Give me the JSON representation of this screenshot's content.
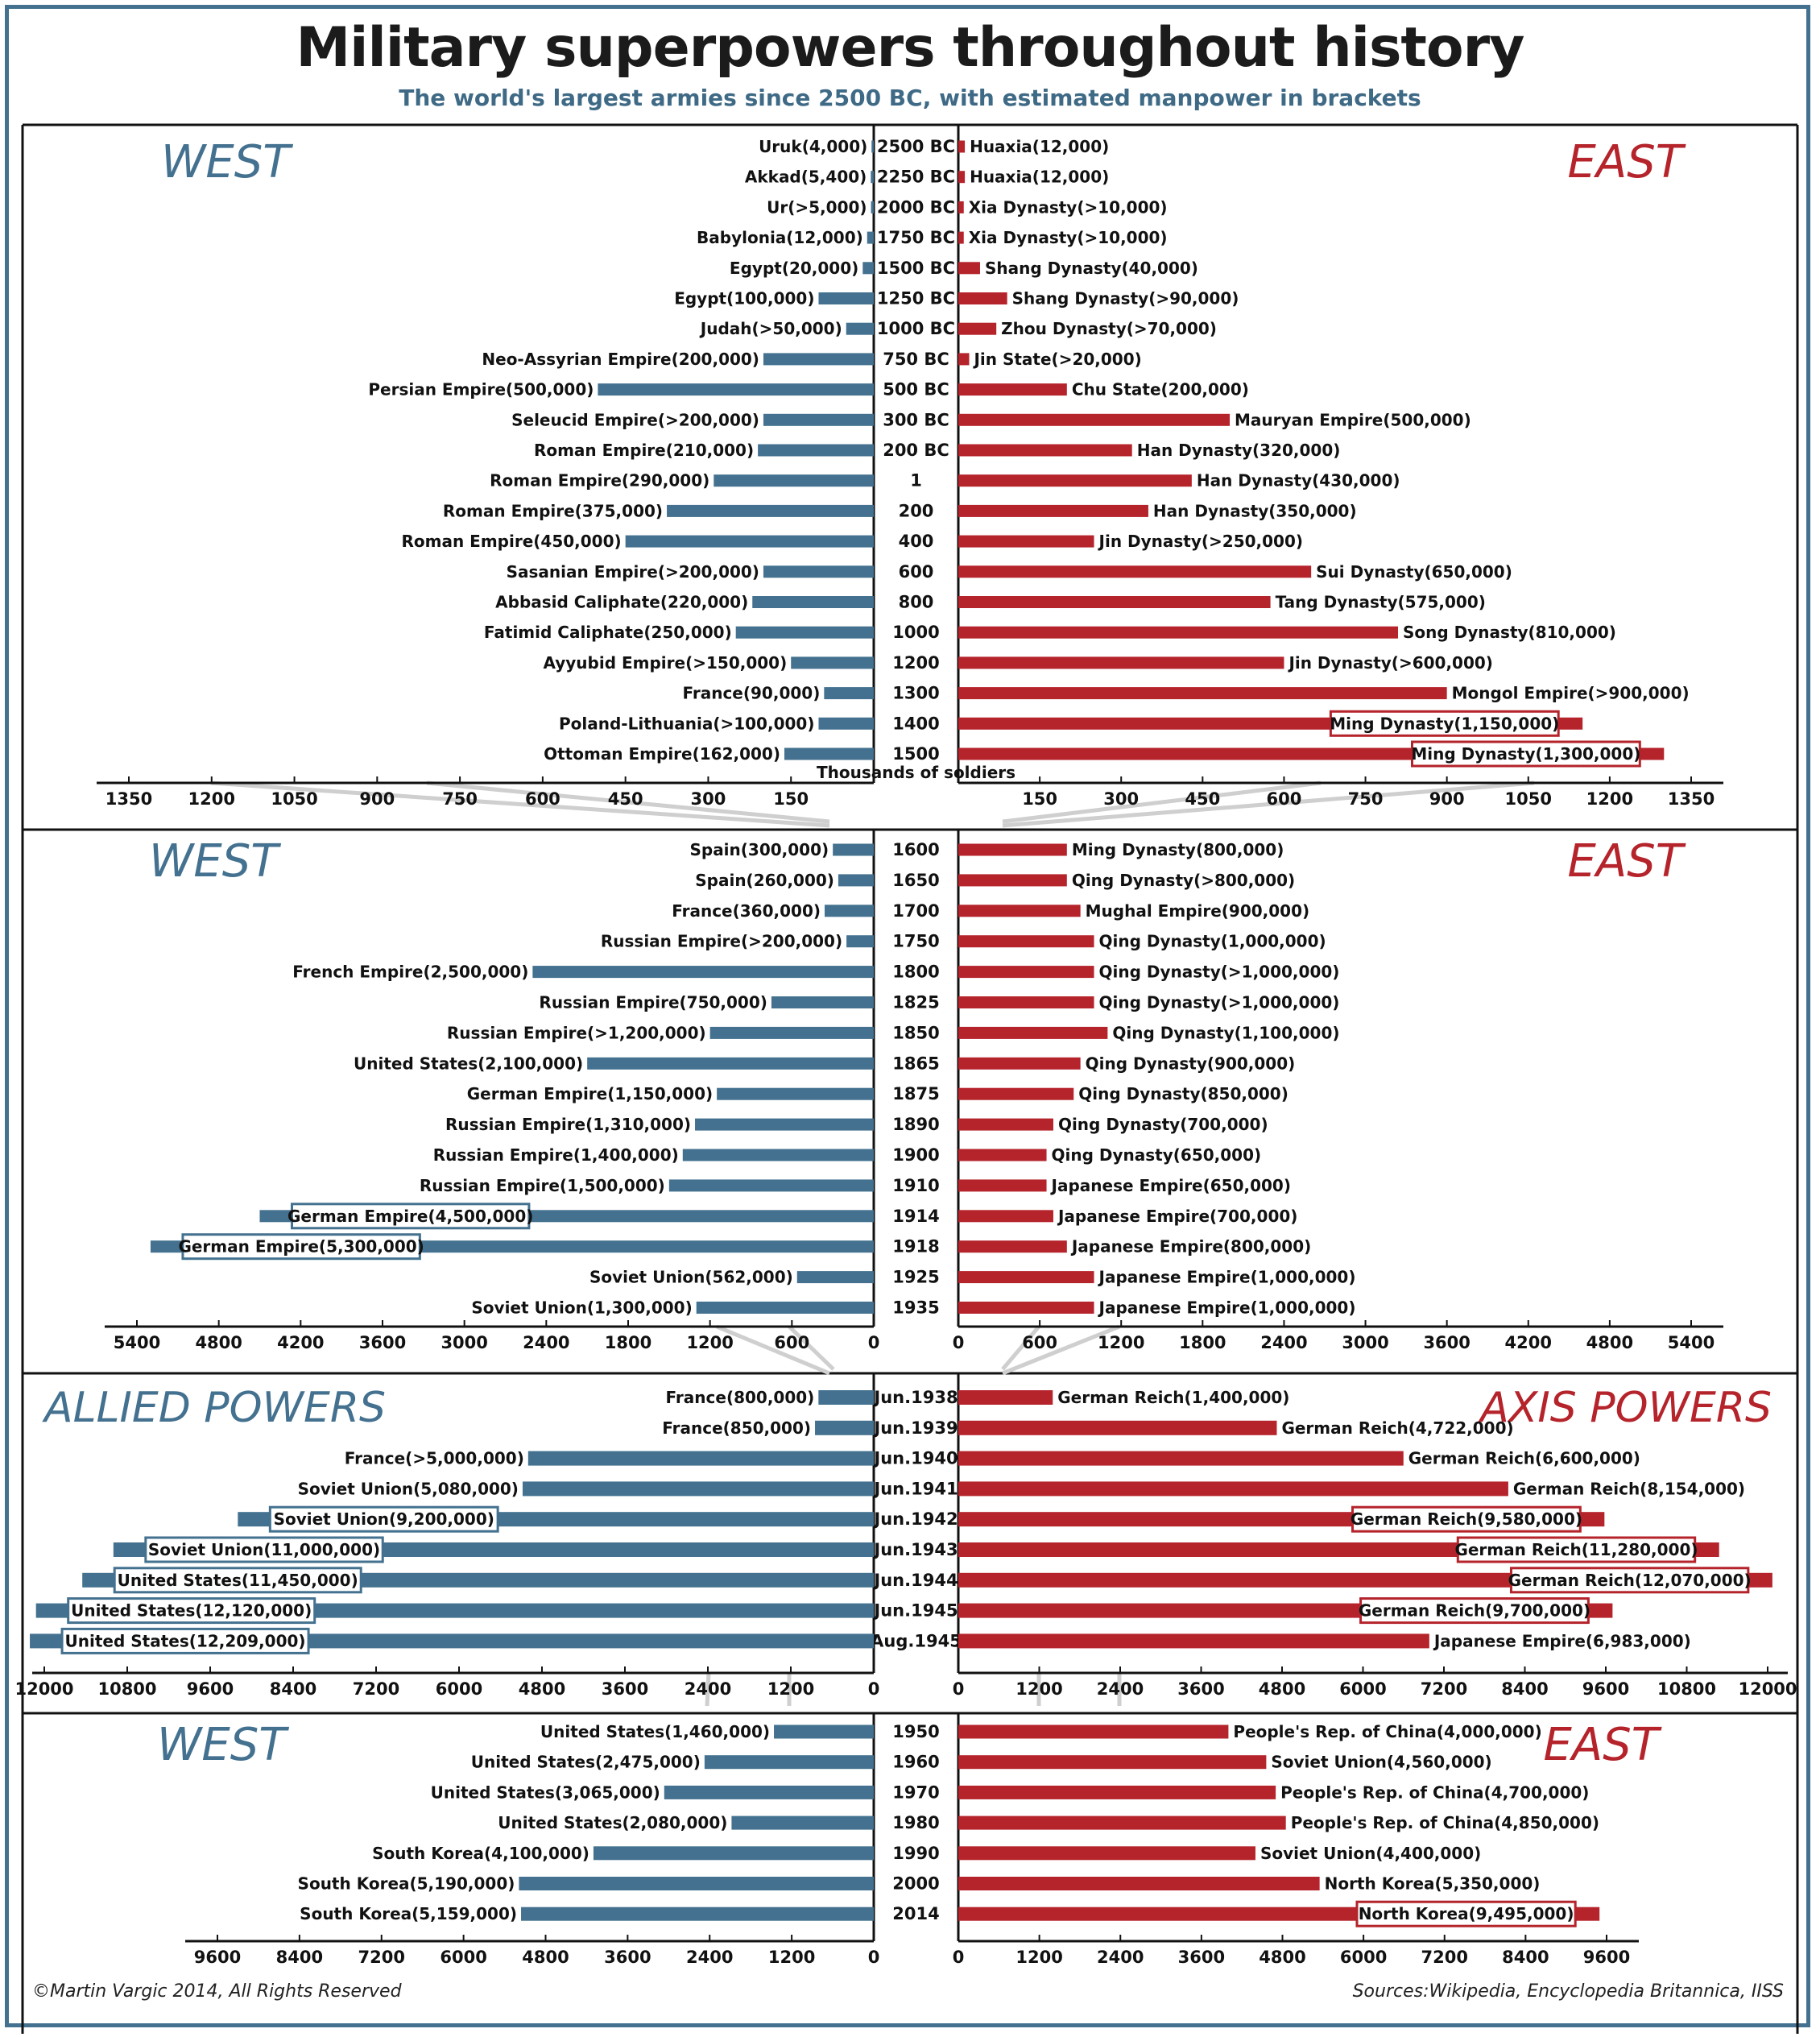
{
  "header": {
    "title": "Military superpowers throughout history",
    "subtitle": "The world's largest armies since 2500 BC, with estimated manpower in brackets"
  },
  "footer": {
    "copyright": "©Martin Vargic 2014, All Rights Reserved",
    "sources": "Sources:Wikipedia, Encyclopedia Britannica, IISS"
  },
  "colors": {
    "west": "#43718f",
    "east": "#b5232b",
    "frame": "#43718f",
    "axis": "#111111",
    "connector": "#cfcfcf"
  },
  "chart_data": [
    {
      "type": "bar",
      "left_heading": "WEST",
      "right_heading": "EAST",
      "xlabel": "Thousands of soldiers",
      "xlim": [
        0,
        1350
      ],
      "left_ticks": [
        "1350",
        "1200",
        "1050",
        "900",
        "750",
        "600",
        "450",
        "300",
        "150"
      ],
      "right_ticks": [
        "150",
        "300",
        "450",
        "600",
        "750",
        "900",
        "1050",
        "1200",
        "1350"
      ],
      "rows": [
        {
          "year": "2500 BC",
          "west": {
            "label": "Uruk(4,000)",
            "value": 4
          },
          "east": {
            "label": "Huaxia(12,000)",
            "value": 12
          }
        },
        {
          "year": "2250 BC",
          "west": {
            "label": "Akkad(5,400)",
            "value": 5.4
          },
          "east": {
            "label": "Huaxia(12,000)",
            "value": 12
          }
        },
        {
          "year": "2000 BC",
          "west": {
            "label": "Ur(>5,000)",
            "value": 5
          },
          "east": {
            "label": "Xia Dynasty(>10,000)",
            "value": 10
          }
        },
        {
          "year": "1750 BC",
          "west": {
            "label": "Babylonia(12,000)",
            "value": 12
          },
          "east": {
            "label": "Xia Dynasty(>10,000)",
            "value": 10
          }
        },
        {
          "year": "1500 BC",
          "west": {
            "label": "Egypt(20,000)",
            "value": 20
          },
          "east": {
            "label": "Shang Dynasty(40,000)",
            "value": 40
          }
        },
        {
          "year": "1250 BC",
          "west": {
            "label": "Egypt(100,000)",
            "value": 100
          },
          "east": {
            "label": "Shang Dynasty(>90,000)",
            "value": 90
          }
        },
        {
          "year": "1000 BC",
          "west": {
            "label": "Judah(>50,000)",
            "value": 50
          },
          "east": {
            "label": "Zhou Dynasty(>70,000)",
            "value": 70
          }
        },
        {
          "year": "750 BC",
          "west": {
            "label": "Neo-Assyrian Empire(200,000)",
            "value": 200
          },
          "east": {
            "label": "Jin State(>20,000)",
            "value": 20
          }
        },
        {
          "year": "500 BC",
          "west": {
            "label": "Persian Empire(500,000)",
            "value": 500
          },
          "east": {
            "label": "Chu State(200,000)",
            "value": 200
          }
        },
        {
          "year": "300 BC",
          "west": {
            "label": "Seleucid Empire(>200,000)",
            "value": 200
          },
          "east": {
            "label": "Mauryan Empire(500,000)",
            "value": 500
          }
        },
        {
          "year": "200 BC",
          "west": {
            "label": "Roman Empire(210,000)",
            "value": 210
          },
          "east": {
            "label": "Han Dynasty(320,000)",
            "value": 320
          }
        },
        {
          "year": "1",
          "west": {
            "label": "Roman Empire(290,000)",
            "value": 290
          },
          "east": {
            "label": "Han Dynasty(430,000)",
            "value": 430
          }
        },
        {
          "year": "200",
          "west": {
            "label": "Roman Empire(375,000)",
            "value": 375
          },
          "east": {
            "label": "Han Dynasty(350,000)",
            "value": 350
          }
        },
        {
          "year": "400",
          "west": {
            "label": "Roman Empire(450,000)",
            "value": 450
          },
          "east": {
            "label": "Jin Dynasty(>250,000)",
            "value": 250
          }
        },
        {
          "year": "600",
          "west": {
            "label": "Sasanian Empire(>200,000)",
            "value": 200
          },
          "east": {
            "label": "Sui Dynasty(650,000)",
            "value": 650
          }
        },
        {
          "year": "800",
          "west": {
            "label": "Abbasid Caliphate(220,000)",
            "value": 220
          },
          "east": {
            "label": "Tang Dynasty(575,000)",
            "value": 575
          }
        },
        {
          "year": "1000",
          "west": {
            "label": "Fatimid Caliphate(250,000)",
            "value": 250
          },
          "east": {
            "label": "Song Dynasty(810,000)",
            "value": 810
          }
        },
        {
          "year": "1200",
          "west": {
            "label": "Ayyubid Empire(>150,000)",
            "value": 150
          },
          "east": {
            "label": "Jin Dynasty(>600,000)",
            "value": 600
          }
        },
        {
          "year": "1300",
          "west": {
            "label": "France(90,000)",
            "value": 90
          },
          "east": {
            "label": "Mongol Empire(>900,000)",
            "value": 900
          }
        },
        {
          "year": "1400",
          "west": {
            "label": "Poland-Lithuania(>100,000)",
            "value": 100
          },
          "east": {
            "label": "Ming Dynasty(1,150,000)",
            "value": 1150,
            "boxed": true
          }
        },
        {
          "year": "1500",
          "west": {
            "label": "Ottoman Empire(162,000)",
            "value": 162
          },
          "east": {
            "label": "Ming Dynasty(1,300,000)",
            "value": 1300,
            "boxed": true
          }
        }
      ]
    },
    {
      "type": "bar",
      "left_heading": "WEST",
      "right_heading": "EAST",
      "xlim": [
        0,
        5400
      ],
      "left_ticks": [
        "5400",
        "4800",
        "4200",
        "3600",
        "3000",
        "2400",
        "1800",
        "1200",
        "600",
        "0"
      ],
      "right_ticks": [
        "0",
        "600",
        "1200",
        "1800",
        "2400",
        "3000",
        "3600",
        "4200",
        "4800",
        "5400"
      ],
      "rows": [
        {
          "year": "1600",
          "west": {
            "label": "Spain(300,000)",
            "value": 300
          },
          "east": {
            "label": "Ming Dynasty(800,000)",
            "value": 800
          }
        },
        {
          "year": "1650",
          "west": {
            "label": "Spain(260,000)",
            "value": 260
          },
          "east": {
            "label": "Qing Dynasty(>800,000)",
            "value": 800
          }
        },
        {
          "year": "1700",
          "west": {
            "label": "France(360,000)",
            "value": 360
          },
          "east": {
            "label": "Mughal Empire(900,000)",
            "value": 900
          }
        },
        {
          "year": "1750",
          "west": {
            "label": "Russian Empire(>200,000)",
            "value": 200
          },
          "east": {
            "label": "Qing Dynasty(1,000,000)",
            "value": 1000
          }
        },
        {
          "year": "1800",
          "west": {
            "label": "French Empire(2,500,000)",
            "value": 2500
          },
          "east": {
            "label": "Qing Dynasty(>1,000,000)",
            "value": 1000
          }
        },
        {
          "year": "1825",
          "west": {
            "label": "Russian Empire(750,000)",
            "value": 750
          },
          "east": {
            "label": "Qing Dynasty(>1,000,000)",
            "value": 1000
          }
        },
        {
          "year": "1850",
          "west": {
            "label": "Russian Empire(>1,200,000)",
            "value": 1200
          },
          "east": {
            "label": "Qing Dynasty(1,100,000)",
            "value": 1100
          }
        },
        {
          "year": "1865",
          "west": {
            "label": "United States(2,100,000)",
            "value": 2100
          },
          "east": {
            "label": "Qing Dynasty(900,000)",
            "value": 900
          }
        },
        {
          "year": "1875",
          "west": {
            "label": "German Empire(1,150,000)",
            "value": 1150
          },
          "east": {
            "label": "Qing Dynasty(850,000)",
            "value": 850
          }
        },
        {
          "year": "1890",
          "west": {
            "label": "Russian Empire(1,310,000)",
            "value": 1310
          },
          "east": {
            "label": "Qing Dynasty(700,000)",
            "value": 700
          }
        },
        {
          "year": "1900",
          "west": {
            "label": "Russian Empire(1,400,000)",
            "value": 1400
          },
          "east": {
            "label": "Qing Dynasty(650,000)",
            "value": 650
          }
        },
        {
          "year": "1910",
          "west": {
            "label": "Russian Empire(1,500,000)",
            "value": 1500
          },
          "east": {
            "label": "Japanese Empire(650,000)",
            "value": 650
          }
        },
        {
          "year": "1914",
          "west": {
            "label": "German Empire(4,500,000)",
            "value": 4500,
            "boxed": true
          },
          "east": {
            "label": "Japanese Empire(700,000)",
            "value": 700
          }
        },
        {
          "year": "1918",
          "west": {
            "label": "German Empire(5,300,000)",
            "value": 5300,
            "boxed": true
          },
          "east": {
            "label": "Japanese Empire(800,000)",
            "value": 800
          }
        },
        {
          "year": "1925",
          "west": {
            "label": "Soviet Union(562,000)",
            "value": 562
          },
          "east": {
            "label": "Japanese Empire(1,000,000)",
            "value": 1000
          }
        },
        {
          "year": "1935",
          "west": {
            "label": "Soviet Union(1,300,000)",
            "value": 1300
          },
          "east": {
            "label": "Japanese Empire(1,000,000)",
            "value": 1000
          }
        }
      ]
    },
    {
      "type": "bar",
      "left_heading": "ALLIED POWERS",
      "right_heading": "AXIS POWERS",
      "xlim": [
        0,
        12000
      ],
      "left_ticks": [
        "12000",
        "10800",
        "9600",
        "8400",
        "7200",
        "6000",
        "4800",
        "3600",
        "2400",
        "1200",
        "0"
      ],
      "right_ticks": [
        "0",
        "1200",
        "2400",
        "3600",
        "4800",
        "6000",
        "7200",
        "8400",
        "9600",
        "10800",
        "12000"
      ],
      "rows": [
        {
          "year": "Jun.1938",
          "west": {
            "label": "France(800,000)",
            "value": 800
          },
          "east": {
            "label": "German Reich(1,400,000)",
            "value": 1400
          }
        },
        {
          "year": "Jun.1939",
          "west": {
            "label": "France(850,000)",
            "value": 850
          },
          "east": {
            "label": "German Reich(4,722,000)",
            "value": 4722
          }
        },
        {
          "year": "Jun.1940",
          "west": {
            "label": "France(>5,000,000)",
            "value": 5000
          },
          "east": {
            "label": "German Reich(6,600,000)",
            "value": 6600
          }
        },
        {
          "year": "Jun.1941",
          "west": {
            "label": "Soviet Union(5,080,000)",
            "value": 5080
          },
          "east": {
            "label": "German Reich(8,154,000)",
            "value": 8154
          }
        },
        {
          "year": "Jun.1942",
          "west": {
            "label": "Soviet Union(9,200,000)",
            "value": 9200,
            "boxed": true
          },
          "east": {
            "label": "German Reich(9,580,000)",
            "value": 9580,
            "boxed": true
          }
        },
        {
          "year": "Jun.1943",
          "west": {
            "label": "Soviet Union(11,000,000)",
            "value": 11000,
            "boxed": true
          },
          "east": {
            "label": "German Reich(11,280,000)",
            "value": 11280,
            "boxed": true
          }
        },
        {
          "year": "Jun.1944",
          "west": {
            "label": "United States(11,450,000)",
            "value": 11450,
            "boxed": true
          },
          "east": {
            "label": "German Reich(12,070,000)",
            "value": 12070,
            "boxed": true
          }
        },
        {
          "year": "Jun.1945",
          "west": {
            "label": "United States(12,120,000)",
            "value": 12120,
            "boxed": true
          },
          "east": {
            "label": "German Reich(9,700,000)",
            "value": 9700,
            "boxed": true
          }
        },
        {
          "year": "Aug.1945",
          "west": {
            "label": "United States(12,209,000)",
            "value": 12209,
            "boxed": true
          },
          "east": {
            "label": "Japanese Empire(6,983,000)",
            "value": 6983
          }
        }
      ]
    },
    {
      "type": "bar",
      "left_heading": "WEST",
      "right_heading": "EAST",
      "xlim": [
        0,
        9600
      ],
      "left_ticks": [
        "9600",
        "8400",
        "7200",
        "6000",
        "4800",
        "3600",
        "2400",
        "1200",
        "0"
      ],
      "right_ticks": [
        "0",
        "1200",
        "2400",
        "3600",
        "4800",
        "6000",
        "7200",
        "8400",
        "9600"
      ],
      "rows": [
        {
          "year": "1950",
          "west": {
            "label": "United States(1,460,000)",
            "value": 1460
          },
          "east": {
            "label": "People's Rep. of China(4,000,000)",
            "value": 4000
          }
        },
        {
          "year": "1960",
          "west": {
            "label": "United States(2,475,000)",
            "value": 2475
          },
          "east": {
            "label": "Soviet Union(4,560,000)",
            "value": 4560
          }
        },
        {
          "year": "1970",
          "west": {
            "label": "United States(3,065,000)",
            "value": 3065
          },
          "east": {
            "label": "People's Rep. of China(4,700,000)",
            "value": 4700
          }
        },
        {
          "year": "1980",
          "west": {
            "label": "United States(2,080,000)",
            "value": 2080
          },
          "east": {
            "label": "People's Rep. of China(4,850,000)",
            "value": 4850
          }
        },
        {
          "year": "1990",
          "west": {
            "label": "South Korea(4,100,000)",
            "value": 4100
          },
          "east": {
            "label": "Soviet Union(4,400,000)",
            "value": 4400
          }
        },
        {
          "year": "2000",
          "west": {
            "label": "South Korea(5,190,000)",
            "value": 5190
          },
          "east": {
            "label": "North Korea(5,350,000)",
            "value": 5350
          }
        },
        {
          "year": "2014",
          "west": {
            "label": "South Korea(5,159,000)",
            "value": 5159
          },
          "east": {
            "label": "North Korea(9,495,000)",
            "value": 9495,
            "boxed": true
          }
        }
      ]
    }
  ]
}
